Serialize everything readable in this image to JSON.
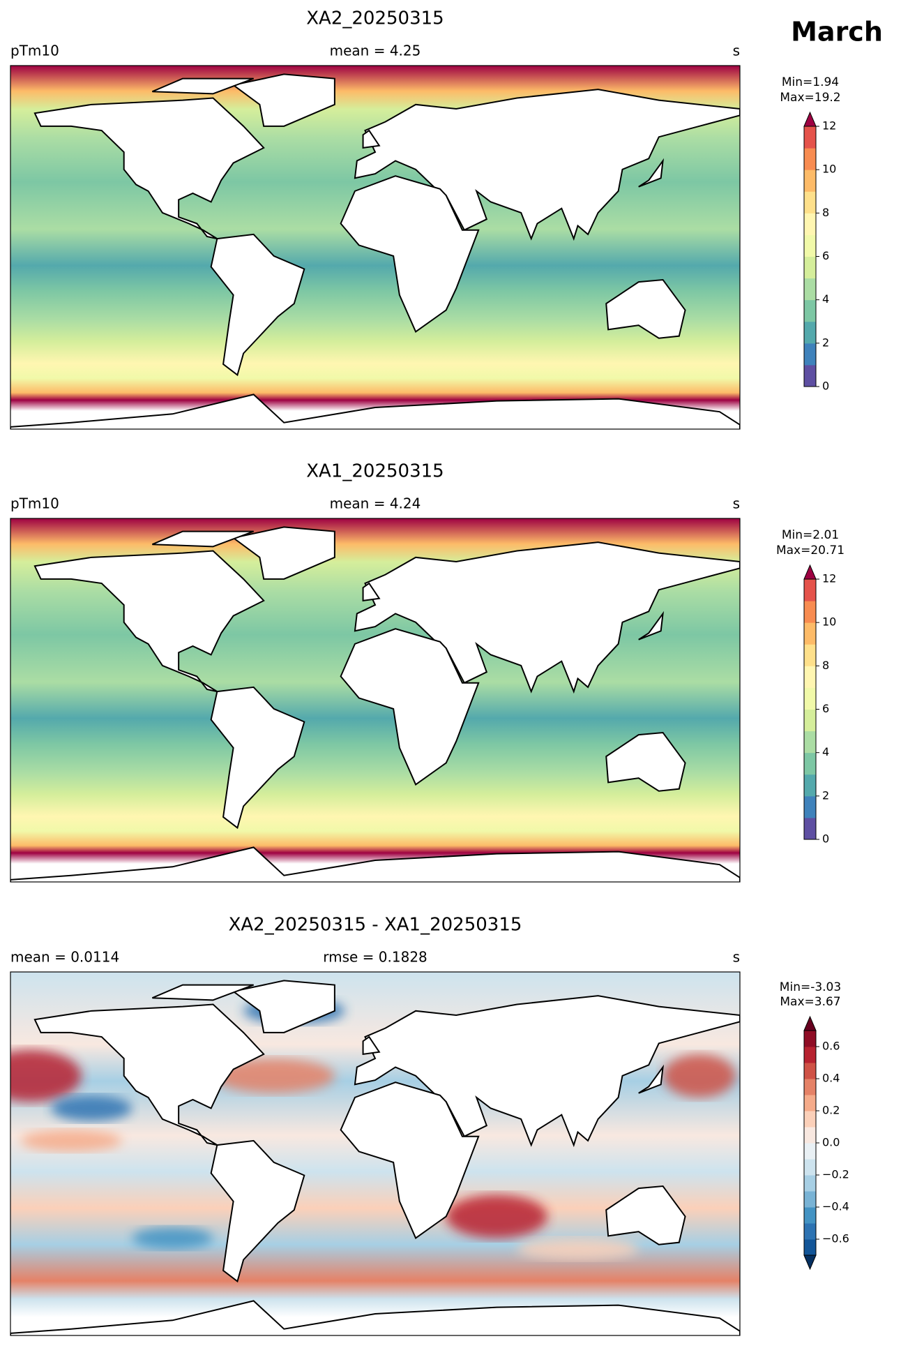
{
  "suptitle": "March",
  "panels": [
    {
      "title": "XA2_20250315",
      "left_label": "pTm10",
      "center_label": "mean = 4.25",
      "right_label": "s",
      "min_label": "Min=1.94",
      "max_label": "Max=19.2",
      "field": "absolute",
      "colorbar": {
        "lim": [
          0,
          12
        ],
        "ticks": [
          0,
          2,
          4,
          6,
          8,
          10,
          12
        ],
        "extend": "max",
        "over_color": "#9e0142",
        "colors": [
          "#5e4fa2",
          "#3f82bb",
          "#54a9ac",
          "#7dc7a4",
          "#abdda4",
          "#d5ee9b",
          "#f1f9a9",
          "#fff6b1",
          "#fee08b",
          "#fdbb68",
          "#f88c51",
          "#e5534b"
        ]
      }
    },
    {
      "title": "XA1_20250315",
      "left_label": "pTm10",
      "center_label": "mean = 4.24",
      "right_label": "s",
      "min_label": "Min=2.01",
      "max_label": "Max=20.71",
      "field": "absolute",
      "colorbar": {
        "lim": [
          0,
          12
        ],
        "ticks": [
          0,
          2,
          4,
          6,
          8,
          10,
          12
        ],
        "extend": "max",
        "over_color": "#9e0142",
        "colors": [
          "#5e4fa2",
          "#3f82bb",
          "#54a9ac",
          "#7dc7a4",
          "#abdda4",
          "#d5ee9b",
          "#f1f9a9",
          "#fff6b1",
          "#fee08b",
          "#fdbb68",
          "#f88c51",
          "#e5534b"
        ]
      }
    },
    {
      "title": "XA2_20250315 - XA1_20250315",
      "left_label": "mean = 0.0114",
      "center_label": "rmse = 0.1828",
      "right_label": "s",
      "min_label": "Min=-3.03",
      "max_label": "Max=3.67",
      "field": "difference",
      "colorbar": {
        "lim": [
          -0.7,
          0.7
        ],
        "ticks": [
          {
            "value": -0.6,
            "label": "−0.6"
          },
          {
            "value": -0.4,
            "label": "−0.4"
          },
          {
            "value": -0.2,
            "label": "−0.2"
          },
          {
            "value": 0,
            "label": "0.0"
          },
          0.2,
          0.4,
          0.6
        ],
        "extend": "both",
        "over_color": "#67001f",
        "under_color": "#053061",
        "colors": [
          "#125598",
          "#2d73b2",
          "#4393c3",
          "#79b3d5",
          "#a7cfe4",
          "#cde3ee",
          "#e9f0f4",
          "#f8e8e0",
          "#fbd0b9",
          "#f5ab8a",
          "#e58267",
          "#cf5246",
          "#b72230",
          "#8f0d25"
        ]
      }
    }
  ]
}
